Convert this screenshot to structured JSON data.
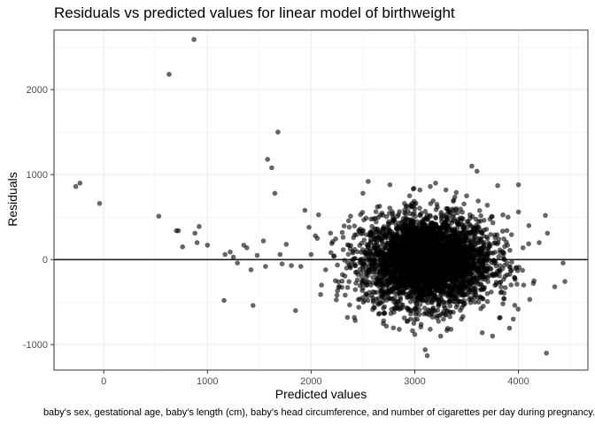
{
  "title": "Residuals vs predicted values for linear model of birthweight",
  "caption": "baby's sex, gestational age, baby's length (cm), baby's head circumference, and number of cigarettes per day during pregnancy.",
  "chart_data": {
    "type": "scatter",
    "title": "Residuals vs predicted values for linear model of birthweight",
    "xlabel": "Predicted values",
    "ylabel": "Residuals",
    "xlim": [
      -480,
      4670
    ],
    "ylim": [
      -1300,
      2700
    ],
    "x_ticks": [
      0,
      1000,
      2000,
      3000,
      4000
    ],
    "y_ticks": [
      -1000,
      0,
      1000,
      2000
    ],
    "x_tick_labels": [
      "0",
      "1000",
      "2000",
      "3000",
      "4000"
    ],
    "y_tick_labels": [
      "-1000",
      "0",
      "1000",
      "2000"
    ],
    "reference_line_y": 0,
    "grid": true,
    "point_color": "#000000",
    "point_opacity": 0.6,
    "points": [
      [
        -270,
        860
      ],
      [
        -230,
        900
      ],
      [
        -40,
        660
      ],
      [
        530,
        510
      ],
      [
        630,
        2180
      ],
      [
        870,
        2590
      ],
      [
        700,
        340
      ],
      [
        720,
        340
      ],
      [
        760,
        150
      ],
      [
        880,
        310
      ],
      [
        920,
        390
      ],
      [
        900,
        200
      ],
      [
        1000,
        170
      ],
      [
        1160,
        -480
      ],
      [
        1170,
        60
      ],
      [
        1220,
        90
      ],
      [
        1250,
        30
      ],
      [
        1290,
        -40
      ],
      [
        1350,
        170
      ],
      [
        1380,
        140
      ],
      [
        1420,
        -120
      ],
      [
        1440,
        -540
      ],
      [
        1480,
        50
      ],
      [
        1540,
        220
      ],
      [
        1560,
        -80
      ],
      [
        1580,
        1180
      ],
      [
        1620,
        1080
      ],
      [
        1650,
        780
      ],
      [
        1680,
        1500
      ],
      [
        1700,
        60
      ],
      [
        1720,
        -50
      ],
      [
        1760,
        180
      ],
      [
        1810,
        -70
      ],
      [
        1850,
        -600
      ],
      [
        1900,
        -80
      ],
      [
        1940,
        580
      ],
      [
        1980,
        380
      ],
      [
        2000,
        60
      ],
      [
        2060,
        250
      ],
      [
        2100,
        -300
      ],
      [
        2140,
        -120
      ],
      [
        2200,
        190
      ],
      [
        2250,
        -420
      ],
      [
        2300,
        320
      ],
      [
        2350,
        -680
      ],
      [
        2380,
        510
      ],
      [
        2420,
        120
      ],
      [
        2460,
        -560
      ],
      [
        2500,
        780
      ],
      [
        2550,
        920
      ],
      [
        2600,
        -500
      ],
      [
        2640,
        620
      ],
      [
        2700,
        -720
      ],
      [
        2760,
        880
      ],
      [
        2800,
        480
      ],
      [
        2850,
        -820
      ],
      [
        2900,
        660
      ],
      [
        2950,
        750
      ],
      [
        3000,
        -880
      ],
      [
        3050,
        820
      ],
      [
        3100,
        -1060
      ],
      [
        3120,
        -1130
      ],
      [
        3150,
        860
      ],
      [
        3200,
        900
      ],
      [
        3250,
        -900
      ],
      [
        3300,
        820
      ],
      [
        3350,
        -820
      ],
      [
        3400,
        790
      ],
      [
        3450,
        -700
      ],
      [
        3500,
        750
      ],
      [
        3550,
        1100
      ],
      [
        3600,
        1040
      ],
      [
        3650,
        -860
      ],
      [
        3700,
        640
      ],
      [
        3750,
        -900
      ],
      [
        3800,
        870
      ],
      [
        3850,
        -520
      ],
      [
        3900,
        500
      ],
      [
        3950,
        -700
      ],
      [
        4000,
        560
      ],
      [
        4050,
        -300
      ],
      [
        4100,
        400
      ],
      [
        4150,
        -250
      ],
      [
        4200,
        200
      ],
      [
        4260,
        520
      ],
      [
        4280,
        310
      ],
      [
        4270,
        -1100
      ],
      [
        4350,
        -320
      ],
      [
        4430,
        -40
      ],
      [
        4000,
        880
      ],
      [
        3400,
        600
      ],
      [
        3000,
        600
      ],
      [
        2800,
        -500
      ],
      [
        3300,
        -650
      ],
      [
        2600,
        300
      ],
      [
        3700,
        -400
      ]
    ],
    "cloud": {
      "x_mean": 3120,
      "x_sd": 310,
      "y_mean": -20,
      "y_sd": 260,
      "n": 3800
    }
  }
}
